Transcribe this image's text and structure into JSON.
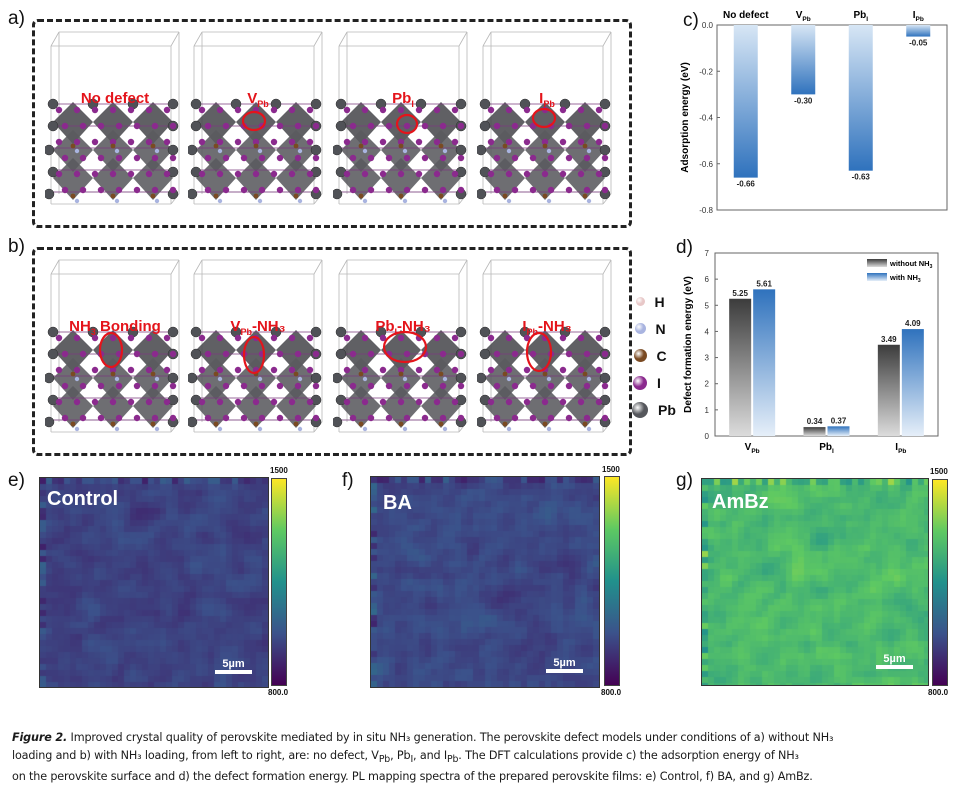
{
  "panels": {
    "a": {
      "letter": "a)",
      "models": [
        {
          "label": "No defect",
          "sub": "",
          "suffix": ""
        },
        {
          "label": "V",
          "sub": "Pb",
          "suffix": ""
        },
        {
          "label": "Pb",
          "sub": "I",
          "suffix": ""
        },
        {
          "label": "I",
          "sub": "Pb",
          "suffix": ""
        }
      ]
    },
    "b": {
      "letter": "b)",
      "models": [
        {
          "label": "NH",
          "sub": "3",
          "suffix": " Bonding"
        },
        {
          "label": "V",
          "sub": "Pb",
          "suffix": "-NH₃"
        },
        {
          "label": "Pb",
          "sub": "I",
          "suffix": "-NH₃"
        },
        {
          "label": "I",
          "sub": "Pb",
          "suffix": "-NH₃"
        }
      ]
    },
    "atom_legend": [
      {
        "symbol": "H",
        "color": "#e8c8c8"
      },
      {
        "symbol": "N",
        "color": "#a9b4e0"
      },
      {
        "symbol": "C",
        "color": "#7a4a22"
      },
      {
        "symbol": "I",
        "color": "#8b2a8e"
      },
      {
        "symbol": "Pb",
        "color": "#55575c"
      }
    ],
    "c": {
      "letter": "c)"
    },
    "d": {
      "letter": "d)"
    },
    "e": {
      "letter": "e)",
      "title": "Control",
      "scale": "5µm",
      "cbar_max": "1500",
      "cbar_min": "800.0"
    },
    "f": {
      "letter": "f)",
      "title": "BA",
      "scale": "5µm",
      "cbar_max": "1500",
      "cbar_min": "800.0"
    },
    "g": {
      "letter": "g)",
      "title": "AmBz",
      "scale": "5µm",
      "cbar_max": "1500",
      "cbar_min": "800.0"
    }
  },
  "chart_data": [
    {
      "id": "c",
      "type": "bar",
      "title": "",
      "categories": [
        "No defect",
        "V_Pb",
        "Pb_I",
        "I_Pb"
      ],
      "category_labels": [
        [
          "No defect",
          ""
        ],
        [
          "V",
          "Pb"
        ],
        [
          "Pb",
          "I"
        ],
        [
          "I",
          "Pb"
        ]
      ],
      "values": [
        -0.66,
        -0.3,
        -0.63,
        -0.05
      ],
      "value_labels": [
        "-0.66",
        "-0.30",
        "-0.63",
        "-0.05"
      ],
      "xlabel": "",
      "ylabel": "Adsorption energy (eV)",
      "ylim": [
        -0.8,
        0.0
      ],
      "yticks": [
        0.0,
        -0.2,
        -0.4,
        -0.6,
        -0.8
      ],
      "ytick_labels": [
        "0.0",
        "-0.2",
        "-0.4",
        "-0.6",
        "-0.8"
      ],
      "category_axis": "top",
      "grid": false,
      "colors": {
        "light": "#d7e6f5",
        "dark": "#2f72bd"
      }
    },
    {
      "id": "d",
      "type": "bar",
      "title": "",
      "categories": [
        "V_Pb",
        "Pb_I",
        "I_Pb"
      ],
      "category_labels": [
        [
          "V",
          "Pb"
        ],
        [
          "Pb",
          "I"
        ],
        [
          "I",
          "Pb"
        ]
      ],
      "series": [
        {
          "name": "without NH3",
          "legend_main": "without NH",
          "legend_sub": "3",
          "values": [
            5.25,
            0.34,
            3.49
          ],
          "value_labels": [
            "5.25",
            "0.34",
            "3.49"
          ],
          "colors": {
            "light": "#dcdcdc",
            "dark": "#3c3c3c"
          }
        },
        {
          "name": "with NH3",
          "legend_main": "with NH",
          "legend_sub": "3",
          "values": [
            5.61,
            0.37,
            4.09
          ],
          "value_labels": [
            "5.61",
            "0.37",
            "4.09"
          ],
          "colors": {
            "light": "#e6eff9",
            "dark": "#2f72bd"
          }
        }
      ],
      "xlabel": "",
      "ylabel": "Defect formation energy (eV)",
      "ylim": [
        0,
        7
      ],
      "yticks": [
        0,
        1,
        2,
        3,
        4,
        5,
        6,
        7
      ],
      "ytick_labels": [
        "0",
        "1",
        "2",
        "3",
        "4",
        "5",
        "6",
        "7"
      ],
      "legend": "top-right",
      "grid": false
    },
    {
      "id": "e",
      "type": "heatmap",
      "title": "Control",
      "colorbar_range": [
        800.0,
        1500
      ],
      "colormap": "viridis",
      "mean_level": 0.2
    },
    {
      "id": "f",
      "type": "heatmap",
      "title": "BA",
      "colorbar_range": [
        800.0,
        1500
      ],
      "colormap": "viridis",
      "mean_level": 0.22
    },
    {
      "id": "g",
      "type": "heatmap",
      "title": "AmBz",
      "colorbar_range": [
        800.0,
        1500
      ],
      "colormap": "viridis",
      "mean_level": 0.68
    }
  ],
  "caption": {
    "label": "Figure 2.",
    "line1": " Improved crystal quality of perovskite mediated by in situ NH₃ generation. The perovskite defect models under conditions of a) without NH₃",
    "line2a": "loading and b) with NH₃ loading, from left to right, are: no defect, V",
    "line2_sub1": "Pb",
    "line2b": ", Pb",
    "line2_sub2": "I",
    "line2c": ", and I",
    "line2_sub3": "Pb",
    "line2d": ". The DFT calculations provide c) the adsorption energy of NH₃",
    "line3": "on the perovskite surface and d) the defect formation energy. PL mapping spectra of the prepared perovskite films: e) Control, f) BA, and g) AmBz."
  }
}
